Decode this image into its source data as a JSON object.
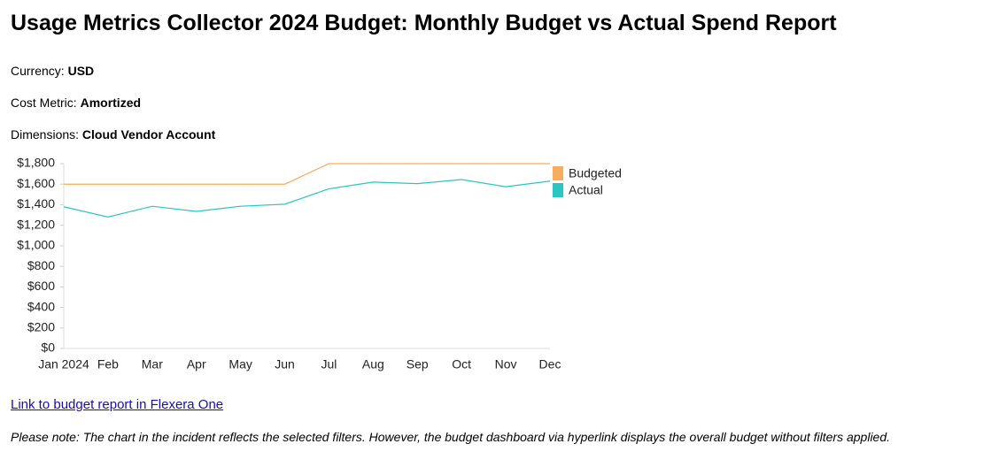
{
  "header": {
    "title": "Usage Metrics Collector 2024 Budget: Monthly Budget vs Actual Spend Report"
  },
  "fields": [
    {
      "label": "Currency:",
      "value": "USD"
    },
    {
      "label": "Cost Metric:",
      "value": "Amortized"
    },
    {
      "label": "Dimensions:",
      "value": "Cloud Vendor Account"
    }
  ],
  "chart_data": {
    "type": "line",
    "categories": [
      "Jan 2024",
      "Feb",
      "Mar",
      "Apr",
      "May",
      "Jun",
      "Jul",
      "Aug",
      "Sep",
      "Oct",
      "Nov",
      "Dec"
    ],
    "series": [
      {
        "name": "Budgeted",
        "color": "#f7ad5f",
        "values": [
          1600,
          1600,
          1600,
          1600,
          1600,
          1600,
          1800,
          1800,
          1800,
          1800,
          1800,
          1800
        ]
      },
      {
        "name": "Actual",
        "color": "#2cc6c2",
        "values": [
          1380,
          1280,
          1385,
          1335,
          1385,
          1405,
          1555,
          1620,
          1605,
          1645,
          1575,
          1630
        ]
      }
    ],
    "ylim": [
      0,
      1800
    ],
    "yticks": [
      {
        "value": 0,
        "label": "$0"
      },
      {
        "value": 200,
        "label": "$200"
      },
      {
        "value": 400,
        "label": "$400"
      },
      {
        "value": 600,
        "label": "$600"
      },
      {
        "value": 800,
        "label": "$800"
      },
      {
        "value": 1000,
        "label": "$1,000"
      },
      {
        "value": 1200,
        "label": "$1,200"
      },
      {
        "value": 1400,
        "label": "$1,400"
      },
      {
        "value": 1600,
        "label": "$1,600"
      },
      {
        "value": 1800,
        "label": "$1,800"
      }
    ],
    "grid": false,
    "legend": "right"
  },
  "link": {
    "text": "Link to budget report in Flexera One"
  },
  "note": "Please note: The chart in the incident reflects the selected filters. However, the budget dashboard via hyperlink displays the overall budget without filters applied."
}
